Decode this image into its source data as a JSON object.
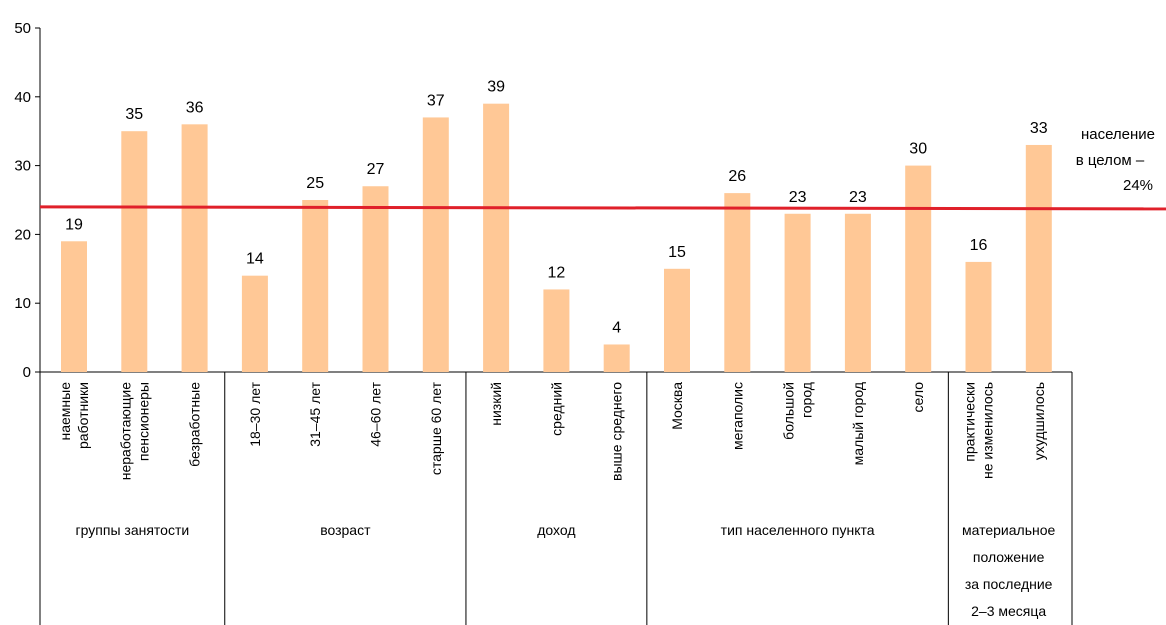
{
  "colors": {
    "bar": "#FFC896",
    "reference_line": "#E0202A",
    "axis": "#000000"
  },
  "chart_data": {
    "type": "bar",
    "title": "",
    "xlabel": "",
    "ylabel": "",
    "ylim": [
      0,
      50
    ],
    "yticks": [
      0,
      10,
      20,
      30,
      40,
      50
    ],
    "grid": false,
    "categories": [
      [
        "наемные",
        "работники"
      ],
      [
        "неработающие",
        "пенсионеры"
      ],
      [
        "безработные"
      ],
      [
        "18–30 лет"
      ],
      [
        "31–45 лет"
      ],
      [
        "46–60 лет"
      ],
      [
        "старше 60 лет"
      ],
      [
        "низкий"
      ],
      [
        "средний"
      ],
      [
        "выше среднего"
      ],
      [
        "Москва"
      ],
      [
        "мегаполис"
      ],
      [
        "большой",
        "город"
      ],
      [
        "малый город"
      ],
      [
        "село"
      ],
      [
        "практически",
        "не изменилось"
      ],
      [
        "ухудшилось"
      ]
    ],
    "values": [
      19,
      35,
      36,
      14,
      25,
      27,
      37,
      39,
      12,
      4,
      15,
      26,
      23,
      23,
      30,
      16,
      33
    ],
    "groups": [
      {
        "label": [
          "группы занятости"
        ],
        "start": 0,
        "count": 3
      },
      {
        "label": [
          "возраст"
        ],
        "start": 3,
        "count": 4
      },
      {
        "label": [
          "доход"
        ],
        "start": 7,
        "count": 3
      },
      {
        "label": [
          "тип населенного пункта"
        ],
        "start": 10,
        "count": 5
      },
      {
        "label": [
          "материальное",
          "положение",
          "за последние",
          "2–3 месяца"
        ],
        "start": 15,
        "count": 2
      }
    ],
    "reference_line": {
      "value": 24,
      "label": [
        "население",
        "в целом –",
        "24%"
      ]
    }
  }
}
